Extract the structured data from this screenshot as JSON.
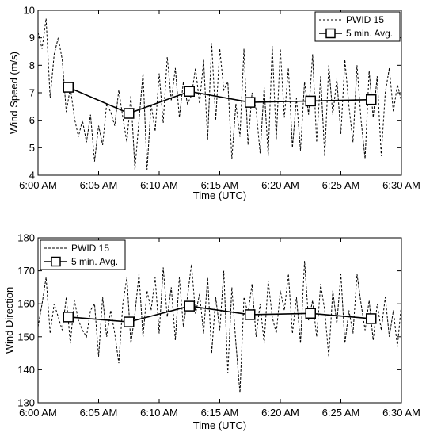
{
  "chart_data": [
    {
      "type": "line",
      "title": "",
      "xlabel": "Time (UTC)",
      "ylabel": "Wind Speed (m/s)",
      "ylim": [
        4,
        10
      ],
      "xlim": [
        "6:00 AM",
        "6:30 AM"
      ],
      "x_ticks": [
        "6:00 AM",
        "6:05 AM",
        "6:10 AM",
        "6:15 AM",
        "6:20 AM",
        "6:25 AM",
        "6:30 AM"
      ],
      "y_ticks": [
        "4",
        "5",
        "6",
        "7",
        "8",
        "9",
        "10"
      ],
      "grid": false,
      "legend_position": "top-right",
      "series": [
        {
          "name": "PWID 15",
          "style": "dashed",
          "x": [
            "6:00:00 AM",
            "6:00:20 AM",
            "6:00:40 AM",
            "6:01:00 AM",
            "6:01:20 AM",
            "6:01:40 AM",
            "6:02:00 AM",
            "6:02:20 AM",
            "6:02:40 AM",
            "6:03:00 AM",
            "6:03:20 AM",
            "6:03:40 AM",
            "6:04:00 AM",
            "6:04:20 AM",
            "6:04:40 AM",
            "6:05:00 AM",
            "6:05:20 AM",
            "6:05:40 AM",
            "6:06:00 AM",
            "6:06:20 AM",
            "6:06:40 AM",
            "6:07:00 AM",
            "6:07:20 AM",
            "6:07:40 AM",
            "6:08:00 AM",
            "6:08:20 AM",
            "6:08:40 AM",
            "6:09:00 AM",
            "6:09:20 AM",
            "6:09:40 AM",
            "6:10:00 AM",
            "6:10:20 AM",
            "6:10:40 AM",
            "6:11:00 AM",
            "6:11:20 AM",
            "6:11:40 AM",
            "6:12:00 AM",
            "6:12:20 AM",
            "6:12:40 AM",
            "6:13:00 AM",
            "6:13:20 AM",
            "6:13:40 AM",
            "6:14:00 AM",
            "6:14:20 AM",
            "6:14:40 AM",
            "6:15:00 AM",
            "6:15:20 AM",
            "6:15:40 AM",
            "6:16:00 AM",
            "6:16:20 AM",
            "6:16:40 AM",
            "6:17:00 AM",
            "6:17:20 AM",
            "6:17:40 AM",
            "6:18:00 AM",
            "6:18:20 AM",
            "6:18:40 AM",
            "6:19:00 AM",
            "6:19:20 AM",
            "6:19:40 AM",
            "6:20:00 AM",
            "6:20:20 AM",
            "6:20:40 AM",
            "6:21:00 AM",
            "6:21:20 AM",
            "6:21:40 AM",
            "6:22:00 AM",
            "6:22:20 AM",
            "6:22:40 AM",
            "6:23:00 AM",
            "6:23:20 AM",
            "6:23:40 AM",
            "6:24:00 AM",
            "6:24:20 AM",
            "6:24:40 AM",
            "6:25:00 AM",
            "6:25:20 AM",
            "6:25:40 AM",
            "6:26:00 AM",
            "6:26:20 AM",
            "6:26:40 AM",
            "6:27:00 AM",
            "6:27:20 AM",
            "6:27:40 AM",
            "6:28:00 AM",
            "6:28:20 AM",
            "6:28:40 AM",
            "6:29:00 AM",
            "6:29:20 AM",
            "6:29:40 AM",
            "6:30:00 AM"
          ],
          "values": [
            9.2,
            8.6,
            9.7,
            6.8,
            8.4,
            9.0,
            8.2,
            6.3,
            7.2,
            6.1,
            5.4,
            6.0,
            5.2,
            6.2,
            4.5,
            5.8,
            5.1,
            6.6,
            6.3,
            5.8,
            7.1,
            6.1,
            5.2,
            6.9,
            4.2,
            6.0,
            7.7,
            4.2,
            6.6,
            5.6,
            7.7,
            5.9,
            8.3,
            6.7,
            7.9,
            6.1,
            7.4,
            6.6,
            6.9,
            7.9,
            6.6,
            8.2,
            5.3,
            8.8,
            6.0,
            8.6,
            7.1,
            7.4,
            4.6,
            6.6,
            5.4,
            8.6,
            5.1,
            7.0,
            6.4,
            4.8,
            7.2,
            4.7,
            8.7,
            5.3,
            8.6,
            6.1,
            7.9,
            5.0,
            6.8,
            4.9,
            7.4,
            6.2,
            8.4,
            5.2,
            7.6,
            4.7,
            8.0,
            6.2,
            7.5,
            5.5,
            8.2,
            6.5,
            5.2,
            8.0,
            6.0,
            4.6,
            7.8,
            6.1,
            7.6,
            4.7,
            7.0,
            7.9,
            6.3,
            7.3,
            6.7
          ]
        },
        {
          "name": "5 min. Avg.",
          "style": "solid-square",
          "x": [
            "6:02:30 AM",
            "6:07:30 AM",
            "6:12:30 AM",
            "6:17:30 AM",
            "6:22:30 AM",
            "6:27:30 AM"
          ],
          "values": [
            7.2,
            6.25,
            7.05,
            6.65,
            6.7,
            6.75
          ]
        }
      ]
    },
    {
      "type": "line",
      "title": "",
      "xlabel": "Time (UTC)",
      "ylabel": "Wind Direction",
      "ylim": [
        130,
        180
      ],
      "xlim": [
        "6:00 AM",
        "6:30 AM"
      ],
      "x_ticks": [
        "6:00 AM",
        "6:05 AM",
        "6:10 AM",
        "6:15 AM",
        "6:20 AM",
        "6:25 AM",
        "6:30 AM"
      ],
      "y_ticks": [
        "130",
        "140",
        "150",
        "160",
        "170",
        "180"
      ],
      "grid": false,
      "legend_position": "top-left",
      "series": [
        {
          "name": "PWID 15",
          "style": "dashed",
          "x": [
            "6:00:00 AM",
            "6:00:20 AM",
            "6:00:40 AM",
            "6:01:00 AM",
            "6:01:20 AM",
            "6:01:40 AM",
            "6:02:00 AM",
            "6:02:20 AM",
            "6:02:40 AM",
            "6:03:00 AM",
            "6:03:20 AM",
            "6:03:40 AM",
            "6:04:00 AM",
            "6:04:20 AM",
            "6:04:40 AM",
            "6:05:00 AM",
            "6:05:20 AM",
            "6:05:40 AM",
            "6:06:00 AM",
            "6:06:20 AM",
            "6:06:40 AM",
            "6:07:00 AM",
            "6:07:20 AM",
            "6:07:40 AM",
            "6:08:00 AM",
            "6:08:20 AM",
            "6:08:40 AM",
            "6:09:00 AM",
            "6:09:20 AM",
            "6:09:40 AM",
            "6:10:00 AM",
            "6:10:20 AM",
            "6:10:40 AM",
            "6:11:00 AM",
            "6:11:20 AM",
            "6:11:40 AM",
            "6:12:00 AM",
            "6:12:20 AM",
            "6:12:40 AM",
            "6:13:00 AM",
            "6:13:20 AM",
            "6:13:40 AM",
            "6:14:00 AM",
            "6:14:20 AM",
            "6:14:40 AM",
            "6:15:00 AM",
            "6:15:20 AM",
            "6:15:40 AM",
            "6:16:00 AM",
            "6:16:20 AM",
            "6:16:40 AM",
            "6:17:00 AM",
            "6:17:20 AM",
            "6:17:40 AM",
            "6:18:00 AM",
            "6:18:20 AM",
            "6:18:40 AM",
            "6:19:00 AM",
            "6:19:20 AM",
            "6:19:40 AM",
            "6:20:00 AM",
            "6:20:20 AM",
            "6:20:40 AM",
            "6:21:00 AM",
            "6:21:20 AM",
            "6:21:40 AM",
            "6:22:00 AM",
            "6:22:20 AM",
            "6:22:40 AM",
            "6:23:00 AM",
            "6:23:20 AM",
            "6:23:40 AM",
            "6:24:00 AM",
            "6:24:20 AM",
            "6:24:40 AM",
            "6:25:00 AM",
            "6:25:20 AM",
            "6:25:40 AM",
            "6:26:00 AM",
            "6:26:20 AM",
            "6:26:40 AM",
            "6:27:00 AM",
            "6:27:20 AM",
            "6:27:40 AM",
            "6:28:00 AM",
            "6:28:20 AM",
            "6:28:40 AM",
            "6:29:00 AM",
            "6:29:20 AM",
            "6:29:40 AM",
            "6:30:00 AM"
          ],
          "values": [
            153,
            160,
            168,
            151,
            160,
            156,
            152,
            162,
            148,
            161,
            155,
            152,
            150,
            158,
            160,
            144,
            162,
            150,
            158,
            151,
            142,
            160,
            168,
            148,
            157,
            169,
            150,
            164,
            158,
            168,
            151,
            171,
            156,
            165,
            149,
            168,
            153,
            162,
            172,
            157,
            163,
            151,
            168,
            145,
            162,
            152,
            170,
            139,
            165,
            148,
            133,
            162,
            157,
            166,
            150,
            160,
            148,
            167,
            156,
            151,
            164,
            158,
            169,
            151,
            162,
            148,
            173,
            155,
            161,
            150,
            166,
            158,
            144,
            164,
            154,
            169,
            148,
            158,
            151,
            169,
            160,
            152,
            161,
            149,
            160,
            152,
            162,
            150,
            158,
            147,
            160
          ]
        },
        {
          "name": "5 min. Avg.",
          "style": "solid-square",
          "x": [
            "6:02:30 AM",
            "6:07:30 AM",
            "6:12:30 AM",
            "6:17:30 AM",
            "6:22:30 AM",
            "6:27:30 AM"
          ],
          "values": [
            156,
            154.5,
            159.3,
            156.7,
            157.1,
            155.5
          ]
        }
      ]
    }
  ]
}
